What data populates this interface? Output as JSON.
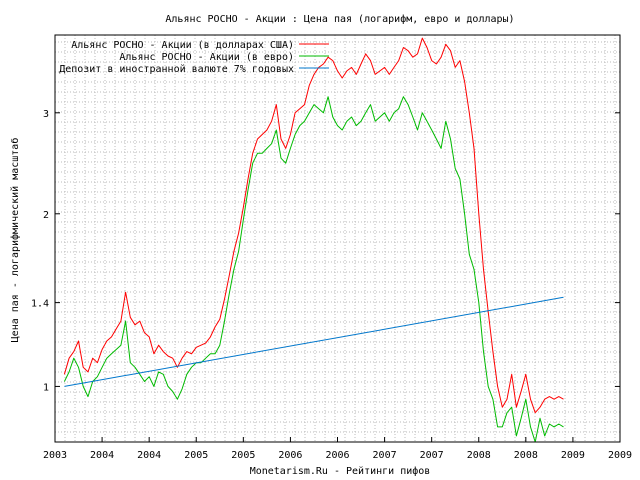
{
  "chart_data": {
    "type": "line",
    "title": "Альянс РОСНО - Акции : Цена пая (логарифм, евро и доллары)",
    "xlabel": "Monetarism.Ru - Рейтинги пифов",
    "ylabel": "Цена пая - логарифмический масштаб",
    "y_scale": "log",
    "ylim": [
      0.8,
      4.1
    ],
    "xlim": [
      2003.0,
      2009.0
    ],
    "grid": true,
    "legend_position": "top-left",
    "x_ticks": [
      {
        "value": 2003.0,
        "label": "2003"
      },
      {
        "value": 2003.5,
        "label": "2004"
      },
      {
        "value": 2004.0,
        "label": "2004"
      },
      {
        "value": 2004.5,
        "label": "2005"
      },
      {
        "value": 2005.0,
        "label": "2005"
      },
      {
        "value": 2005.5,
        "label": "2006"
      },
      {
        "value": 2006.0,
        "label": "2006"
      },
      {
        "value": 2006.5,
        "label": "2007"
      },
      {
        "value": 2007.0,
        "label": "2007"
      },
      {
        "value": 2007.5,
        "label": "2008"
      },
      {
        "value": 2008.0,
        "label": "2008"
      },
      {
        "value": 2008.5,
        "label": "2009"
      },
      {
        "value": 2009.0,
        "label": "2009"
      }
    ],
    "y_ticks": [
      {
        "value": 1,
        "label": "1"
      },
      {
        "value": 1.4,
        "label": "1.4"
      },
      {
        "value": 2,
        "label": "2"
      },
      {
        "value": 3,
        "label": "3"
      }
    ],
    "series": [
      {
        "name": "Альянс РОСНО - Акции (в долларах США)",
        "color": "#ff0000",
        "x": [
          2003.1,
          2003.15,
          2003.2,
          2003.25,
          2003.3,
          2003.35,
          2003.4,
          2003.45,
          2003.5,
          2003.55,
          2003.6,
          2003.65,
          2003.7,
          2003.75,
          2003.8,
          2003.85,
          2003.9,
          2003.95,
          2004.0,
          2004.05,
          2004.1,
          2004.15,
          2004.2,
          2004.25,
          2004.3,
          2004.35,
          2004.4,
          2004.45,
          2004.5,
          2004.55,
          2004.6,
          2004.65,
          2004.7,
          2004.75,
          2004.8,
          2004.85,
          2004.9,
          2004.95,
          2005.0,
          2005.05,
          2005.1,
          2005.15,
          2005.2,
          2005.25,
          2005.3,
          2005.35,
          2005.4,
          2005.45,
          2005.5,
          2005.55,
          2005.6,
          2005.65,
          2005.7,
          2005.75,
          2005.8,
          2005.85,
          2005.9,
          2005.95,
          2006.0,
          2006.05,
          2006.1,
          2006.15,
          2006.2,
          2006.25,
          2006.3,
          2006.35,
          2006.4,
          2006.45,
          2006.5,
          2006.55,
          2006.6,
          2006.65,
          2006.7,
          2006.75,
          2006.8,
          2006.85,
          2006.9,
          2006.95,
          2007.0,
          2007.05,
          2007.1,
          2007.15,
          2007.2,
          2007.25,
          2007.3,
          2007.35,
          2007.4,
          2007.45,
          2007.5,
          2007.55,
          2007.6,
          2007.65,
          2007.7,
          2007.75,
          2007.8,
          2007.85,
          2007.9,
          2007.95,
          2008.0,
          2008.05,
          2008.1,
          2008.15,
          2008.2,
          2008.25,
          2008.3,
          2008.35,
          2008.4
        ],
        "values": [
          1.05,
          1.12,
          1.15,
          1.2,
          1.08,
          1.06,
          1.12,
          1.1,
          1.16,
          1.2,
          1.22,
          1.26,
          1.3,
          1.46,
          1.32,
          1.28,
          1.3,
          1.24,
          1.22,
          1.14,
          1.18,
          1.15,
          1.13,
          1.12,
          1.08,
          1.12,
          1.15,
          1.14,
          1.17,
          1.18,
          1.19,
          1.22,
          1.27,
          1.31,
          1.42,
          1.56,
          1.72,
          1.85,
          2.05,
          2.3,
          2.55,
          2.7,
          2.75,
          2.8,
          2.9,
          3.1,
          2.7,
          2.6,
          2.75,
          3.0,
          3.05,
          3.1,
          3.35,
          3.5,
          3.6,
          3.65,
          3.75,
          3.7,
          3.55,
          3.45,
          3.55,
          3.6,
          3.5,
          3.65,
          3.8,
          3.7,
          3.5,
          3.55,
          3.6,
          3.5,
          3.6,
          3.7,
          3.9,
          3.85,
          3.75,
          3.8,
          4.05,
          3.9,
          3.7,
          3.65,
          3.75,
          3.95,
          3.85,
          3.6,
          3.7,
          3.4,
          3.0,
          2.6,
          2.0,
          1.6,
          1.35,
          1.15,
          1.0,
          0.92,
          0.95,
          1.05,
          0.92,
          0.98,
          1.05,
          0.95,
          0.9,
          0.92,
          0.95,
          0.96,
          0.95,
          0.96,
          0.95
        ]
      },
      {
        "name": "Альянс РОСНО - Акции (в евро)",
        "color": "#00bb00",
        "x": [
          2003.1,
          2003.15,
          2003.2,
          2003.25,
          2003.3,
          2003.35,
          2003.4,
          2003.45,
          2003.5,
          2003.55,
          2003.6,
          2003.65,
          2003.7,
          2003.75,
          2003.8,
          2003.85,
          2003.9,
          2003.95,
          2004.0,
          2004.05,
          2004.1,
          2004.15,
          2004.2,
          2004.25,
          2004.3,
          2004.35,
          2004.4,
          2004.45,
          2004.5,
          2004.55,
          2004.6,
          2004.65,
          2004.7,
          2004.75,
          2004.8,
          2004.85,
          2004.9,
          2004.95,
          2005.0,
          2005.05,
          2005.1,
          2005.15,
          2005.2,
          2005.25,
          2005.3,
          2005.35,
          2005.4,
          2005.45,
          2005.5,
          2005.55,
          2005.6,
          2005.65,
          2005.7,
          2005.75,
          2005.8,
          2005.85,
          2005.9,
          2005.95,
          2006.0,
          2006.05,
          2006.1,
          2006.15,
          2006.2,
          2006.25,
          2006.3,
          2006.35,
          2006.4,
          2006.45,
          2006.5,
          2006.55,
          2006.6,
          2006.65,
          2006.7,
          2006.75,
          2006.8,
          2006.85,
          2006.9,
          2006.95,
          2007.0,
          2007.05,
          2007.1,
          2007.15,
          2007.2,
          2007.25,
          2007.3,
          2007.35,
          2007.4,
          2007.45,
          2007.5,
          2007.55,
          2007.6,
          2007.65,
          2007.7,
          2007.75,
          2007.8,
          2007.85,
          2007.9,
          2007.95,
          2008.0,
          2008.05,
          2008.1,
          2008.15,
          2008.2,
          2008.25,
          2008.3,
          2008.35,
          2008.4
        ],
        "values": [
          1.02,
          1.06,
          1.12,
          1.08,
          1.0,
          0.96,
          1.02,
          1.04,
          1.08,
          1.12,
          1.14,
          1.16,
          1.18,
          1.3,
          1.1,
          1.08,
          1.05,
          1.02,
          1.04,
          1.0,
          1.06,
          1.05,
          1.0,
          0.98,
          0.95,
          0.99,
          1.05,
          1.08,
          1.1,
          1.1,
          1.12,
          1.14,
          1.14,
          1.18,
          1.3,
          1.45,
          1.6,
          1.72,
          1.95,
          2.2,
          2.45,
          2.55,
          2.55,
          2.6,
          2.65,
          2.8,
          2.5,
          2.45,
          2.6,
          2.75,
          2.85,
          2.9,
          3.0,
          3.1,
          3.05,
          3.0,
          3.2,
          2.95,
          2.85,
          2.8,
          2.9,
          2.95,
          2.85,
          2.9,
          3.0,
          3.1,
          2.9,
          2.95,
          3.0,
          2.9,
          3.0,
          3.05,
          3.2,
          3.1,
          2.95,
          2.8,
          3.0,
          2.9,
          2.8,
          2.7,
          2.6,
          2.9,
          2.7,
          2.4,
          2.3,
          2.0,
          1.7,
          1.6,
          1.4,
          1.15,
          1.0,
          0.95,
          0.85,
          0.85,
          0.9,
          0.92,
          0.82,
          0.88,
          0.95,
          0.85,
          0.8,
          0.88,
          0.82,
          0.86,
          0.85,
          0.86,
          0.85
        ]
      },
      {
        "name": "Депозит в иностранной валюте 7% годовых",
        "color": "#0077cc",
        "x": [
          2003.1,
          2008.4
        ],
        "values": [
          1.0,
          1.43
        ]
      }
    ]
  }
}
